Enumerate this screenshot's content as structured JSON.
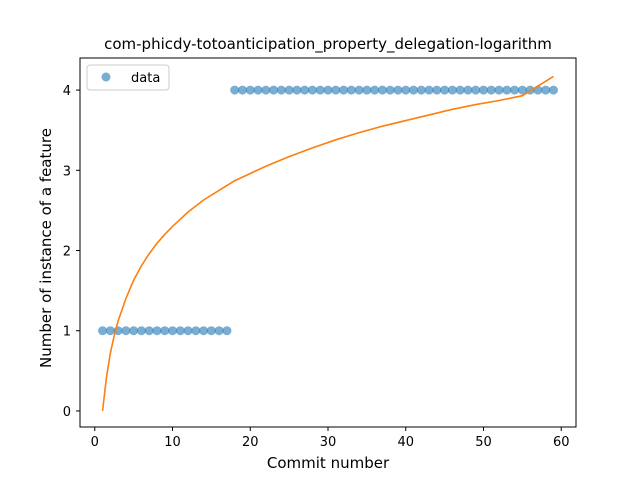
{
  "chart_data": {
    "type": "scatter",
    "title": "com-phicdy-totoanticipation_property_delegation-logarithm",
    "xlabel": "Commit number",
    "ylabel": "Number of instance of a feature",
    "xlim": [
      -1.9,
      61.9
    ],
    "ylim": [
      -0.2,
      4.4
    ],
    "xticks": [
      0,
      10,
      20,
      30,
      40,
      50,
      60
    ],
    "yticks": [
      0,
      1,
      2,
      3,
      4
    ],
    "grid": false,
    "legend_position": "top-left",
    "series": [
      {
        "name": "data",
        "kind": "scatter",
        "color": "#1f77b4",
        "x": [
          1,
          2,
          3,
          4,
          5,
          6,
          7,
          8,
          9,
          10,
          11,
          12,
          13,
          14,
          15,
          16,
          17,
          18,
          19,
          20,
          21,
          22,
          23,
          24,
          25,
          26,
          27,
          28,
          29,
          30,
          31,
          32,
          33,
          34,
          35,
          36,
          37,
          38,
          39,
          40,
          41,
          42,
          43,
          44,
          45,
          46,
          47,
          48,
          49,
          50,
          51,
          52,
          53,
          54,
          55,
          56,
          57,
          58,
          59
        ],
        "y": [
          1,
          1,
          1,
          1,
          1,
          1,
          1,
          1,
          1,
          1,
          1,
          1,
          1,
          1,
          1,
          1,
          1,
          4,
          4,
          4,
          4,
          4,
          4,
          4,
          4,
          4,
          4,
          4,
          4,
          4,
          4,
          4,
          4,
          4,
          4,
          4,
          4,
          4,
          4,
          4,
          4,
          4,
          4,
          4,
          4,
          4,
          4,
          4,
          4,
          4,
          4,
          4,
          4,
          4,
          4,
          4,
          4,
          4,
          4
        ]
      },
      {
        "kind": "line",
        "color": "#ff7f0e",
        "x": [
          1,
          1.5,
          2,
          2.5,
          3,
          4,
          5,
          6,
          7,
          8,
          9,
          10,
          12,
          14,
          16,
          18,
          20,
          22,
          25,
          28,
          31,
          34,
          37,
          40,
          43,
          46,
          49,
          52,
          55,
          59
        ],
        "y": [
          0,
          0.416,
          0.719,
          0.939,
          1.12,
          1.4,
          1.63,
          1.81,
          1.96,
          2.09,
          2.2,
          2.3,
          2.48,
          2.63,
          2.75,
          2.87,
          2.96,
          3.05,
          3.17,
          3.28,
          3.38,
          3.47,
          3.55,
          3.62,
          3.69,
          3.76,
          3.82,
          3.87,
          3.93,
          4.17
        ]
      }
    ]
  }
}
